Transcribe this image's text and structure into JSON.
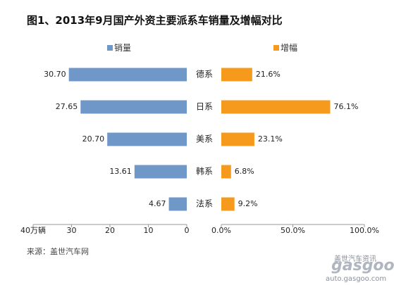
{
  "chart_data": {
    "type": "bar",
    "title": "图1、2013年9月国产外资主要派系车销量及增幅对比",
    "categories": [
      "德系",
      "日系",
      "美系",
      "韩系",
      "法系"
    ],
    "series": [
      {
        "name": "销量",
        "color": "#6f97c8",
        "values": [
          30.7,
          27.65,
          20.7,
          13.61,
          4.67
        ],
        "labels": [
          "30.70",
          "27.65",
          "20.70",
          "13.61",
          "4.67"
        ],
        "axis": {
          "min": 0,
          "max": 40,
          "direction": "reversed",
          "ticks": [
            40,
            30,
            20,
            10,
            0
          ],
          "tick_labels": [
            "40万辆",
            "30",
            "20",
            "10",
            "0"
          ]
        }
      },
      {
        "name": "增幅",
        "color": "#f59a1c",
        "values": [
          21.6,
          76.1,
          23.1,
          6.8,
          9.2
        ],
        "labels": [
          "21.6%",
          "76.1%",
          "23.1%",
          "6.8%",
          "9.2%"
        ],
        "axis": {
          "min": 0,
          "max": 100,
          "ticks": [
            0,
            50,
            100
          ],
          "tick_labels": [
            "0.0%",
            "50.0%",
            "100.0%"
          ]
        }
      }
    ],
    "legend_position": "top",
    "grid": false
  },
  "source": "来源：盖世汽车网",
  "watermark": {
    "logo_text": "gasgoo",
    "tagline": "盖世汽车资讯",
    "url": "auto.gasgoo.com"
  }
}
